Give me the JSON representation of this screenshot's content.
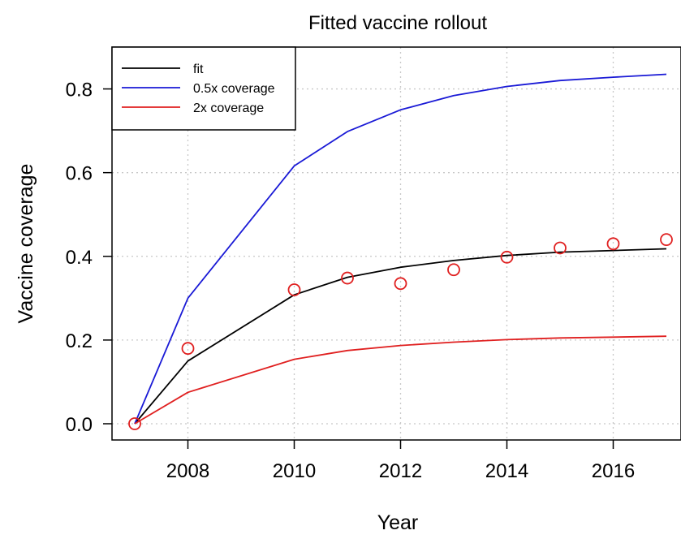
{
  "chart_data": {
    "type": "line",
    "title": "Fitted vaccine rollout",
    "xlabel": "Year",
    "ylabel": "Vaccine coverage",
    "xlim": [
      2007,
      2017
    ],
    "ylim": [
      0,
      0.9
    ],
    "x_ticks": [
      2008,
      2010,
      2012,
      2014,
      2016
    ],
    "y_ticks": [
      "0.0",
      "0.2",
      "0.4",
      "0.6",
      "0.8"
    ],
    "grid": true,
    "legend_position": "top-left",
    "series": [
      {
        "name": "fit",
        "color": "#000000",
        "x": [
          2007,
          2008,
          2010,
          2011,
          2012,
          2013,
          2014,
          2015,
          2016,
          2017
        ],
        "y": [
          0.0,
          0.15,
          0.308,
          0.35,
          0.374,
          0.39,
          0.402,
          0.41,
          0.414,
          0.418
        ]
      },
      {
        "name": "0.5x coverage",
        "color": "#1a1ad6",
        "x": [
          2007,
          2008,
          2010,
          2011,
          2012,
          2013,
          2014,
          2015,
          2016,
          2017
        ],
        "y": [
          0.0,
          0.3,
          0.616,
          0.698,
          0.75,
          0.784,
          0.806,
          0.82,
          0.828,
          0.835
        ]
      },
      {
        "name": "2x coverage",
        "color": "#e02020",
        "x": [
          2007,
          2008,
          2010,
          2011,
          2012,
          2013,
          2014,
          2015,
          2016,
          2017
        ],
        "y": [
          0.0,
          0.075,
          0.154,
          0.175,
          0.187,
          0.195,
          0.201,
          0.205,
          0.207,
          0.209
        ]
      }
    ],
    "observed_points": {
      "marker": "open-circle",
      "color": "#e02020",
      "x": [
        2007,
        2008,
        2010,
        2011,
        2012,
        2013,
        2014,
        2015,
        2016,
        2017
      ],
      "y": [
        0.0,
        0.18,
        0.32,
        0.348,
        0.335,
        0.368,
        0.398,
        0.42,
        0.43,
        0.44
      ]
    }
  }
}
